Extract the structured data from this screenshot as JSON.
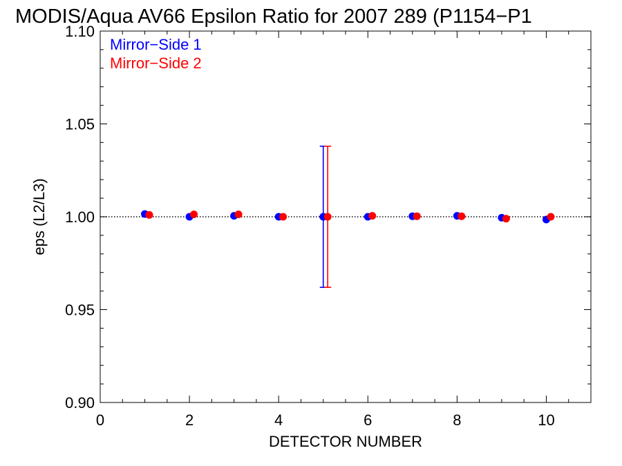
{
  "chart_data": {
    "type": "scatter",
    "title": "MODIS/Aqua AV66 Epsilon Ratio for 2007 289 (P1154−P1",
    "xlabel": "DETECTOR NUMBER",
    "ylabel": "eps (L2/L3)",
    "xlim": [
      0,
      11
    ],
    "ylim": [
      0.9,
      1.1
    ],
    "x_ticks": [
      0,
      2,
      4,
      6,
      8,
      10
    ],
    "x_tick_labels": [
      "0",
      "2",
      "4",
      "6",
      "8",
      "10"
    ],
    "y_ticks": [
      0.9,
      0.95,
      1.0,
      1.05,
      1.1
    ],
    "y_tick_labels": [
      "0.90",
      "0.95",
      "1.00",
      "1.05",
      "1.10"
    ],
    "reference_line": 1.0,
    "legend_position": "top-left",
    "series": [
      {
        "name": "Mirror−Side 1",
        "color": "#0000ff",
        "x": [
          1,
          2,
          3,
          4,
          5,
          6,
          7,
          8,
          9,
          10
        ],
        "y": [
          1.0015,
          1.0,
          1.0005,
          1.0,
          1.0,
          1.0,
          1.0003,
          1.0005,
          0.9995,
          0.9985
        ],
        "error_bars": [
          {
            "x": 5,
            "low": 0.962,
            "high": 1.038
          }
        ]
      },
      {
        "name": "Mirror−Side 2",
        "color": "#ff0000",
        "x": [
          1.1,
          2.1,
          3.1,
          4.1,
          5.1,
          6.1,
          7.1,
          8.1,
          9.1,
          10.1
        ],
        "y": [
          1.001,
          1.0013,
          1.0013,
          1.0,
          1.0,
          1.0005,
          1.0003,
          1.0003,
          0.999,
          1.0
        ],
        "error_bars": [
          {
            "x": 5.1,
            "low": 0.962,
            "high": 1.038
          }
        ]
      }
    ]
  }
}
